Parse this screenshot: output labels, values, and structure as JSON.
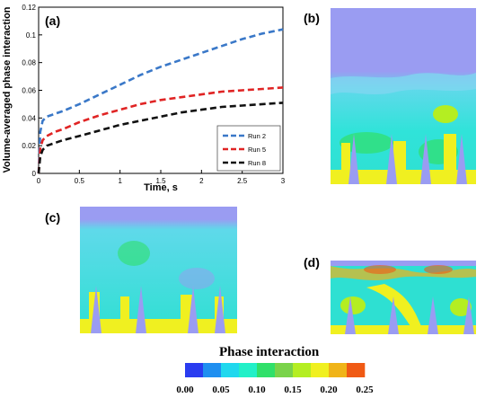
{
  "panels": {
    "a": "(a)",
    "b": "(b)",
    "c": "(c)",
    "d": "(d)"
  },
  "chart_data": {
    "type": "line",
    "xlabel": "Time, s",
    "ylabel": "Volume-averaged phase interaction",
    "xlim": [
      0,
      3
    ],
    "ylim": [
      0,
      0.12
    ],
    "xticks": [
      "0",
      "0.5",
      "1",
      "1.5",
      "2",
      "2.5",
      "3"
    ],
    "yticks": [
      "0",
      "0.02",
      "0.04",
      "0.06",
      "0.08",
      "0.1",
      "0.12"
    ],
    "legend_position": "bottom-right",
    "series": [
      {
        "name": "Run 2",
        "color": "#3a78c8",
        "x": [
          0,
          0.02,
          0.05,
          0.1,
          0.2,
          0.3,
          0.5,
          0.75,
          1.0,
          1.25,
          1.5,
          1.75,
          2.0,
          2.25,
          2.5,
          2.75,
          3.0
        ],
        "y": [
          0,
          0.03,
          0.038,
          0.041,
          0.043,
          0.045,
          0.05,
          0.057,
          0.064,
          0.071,
          0.077,
          0.082,
          0.087,
          0.092,
          0.097,
          0.101,
          0.104
        ]
      },
      {
        "name": "Run 5",
        "color": "#e02424",
        "x": [
          0,
          0.02,
          0.05,
          0.1,
          0.2,
          0.3,
          0.5,
          0.75,
          1.0,
          1.25,
          1.5,
          1.75,
          2.0,
          2.25,
          2.5,
          2.75,
          3.0
        ],
        "y": [
          0,
          0.018,
          0.024,
          0.027,
          0.03,
          0.032,
          0.037,
          0.042,
          0.046,
          0.05,
          0.053,
          0.055,
          0.057,
          0.059,
          0.06,
          0.061,
          0.062
        ]
      },
      {
        "name": "Run 8",
        "color": "#111111",
        "x": [
          0,
          0.02,
          0.05,
          0.1,
          0.2,
          0.3,
          0.5,
          0.75,
          1.0,
          1.25,
          1.5,
          1.75,
          2.0,
          2.25,
          2.5,
          2.75,
          3.0
        ],
        "y": [
          0,
          0.012,
          0.017,
          0.02,
          0.022,
          0.024,
          0.027,
          0.031,
          0.035,
          0.038,
          0.041,
          0.044,
          0.046,
          0.048,
          0.049,
          0.05,
          0.051
        ]
      }
    ]
  },
  "colorbar": {
    "title": "Phase interaction",
    "colors": [
      "#2a3cf0",
      "#1f8ff0",
      "#20d8ee",
      "#22f0c8",
      "#30e06a",
      "#7ad34a",
      "#b4ee22",
      "#f0f020",
      "#f0b418",
      "#f05a14"
    ],
    "tick_labels": [
      "0.00",
      "0.05",
      "0.10",
      "0.15",
      "0.20",
      "0.25"
    ]
  }
}
